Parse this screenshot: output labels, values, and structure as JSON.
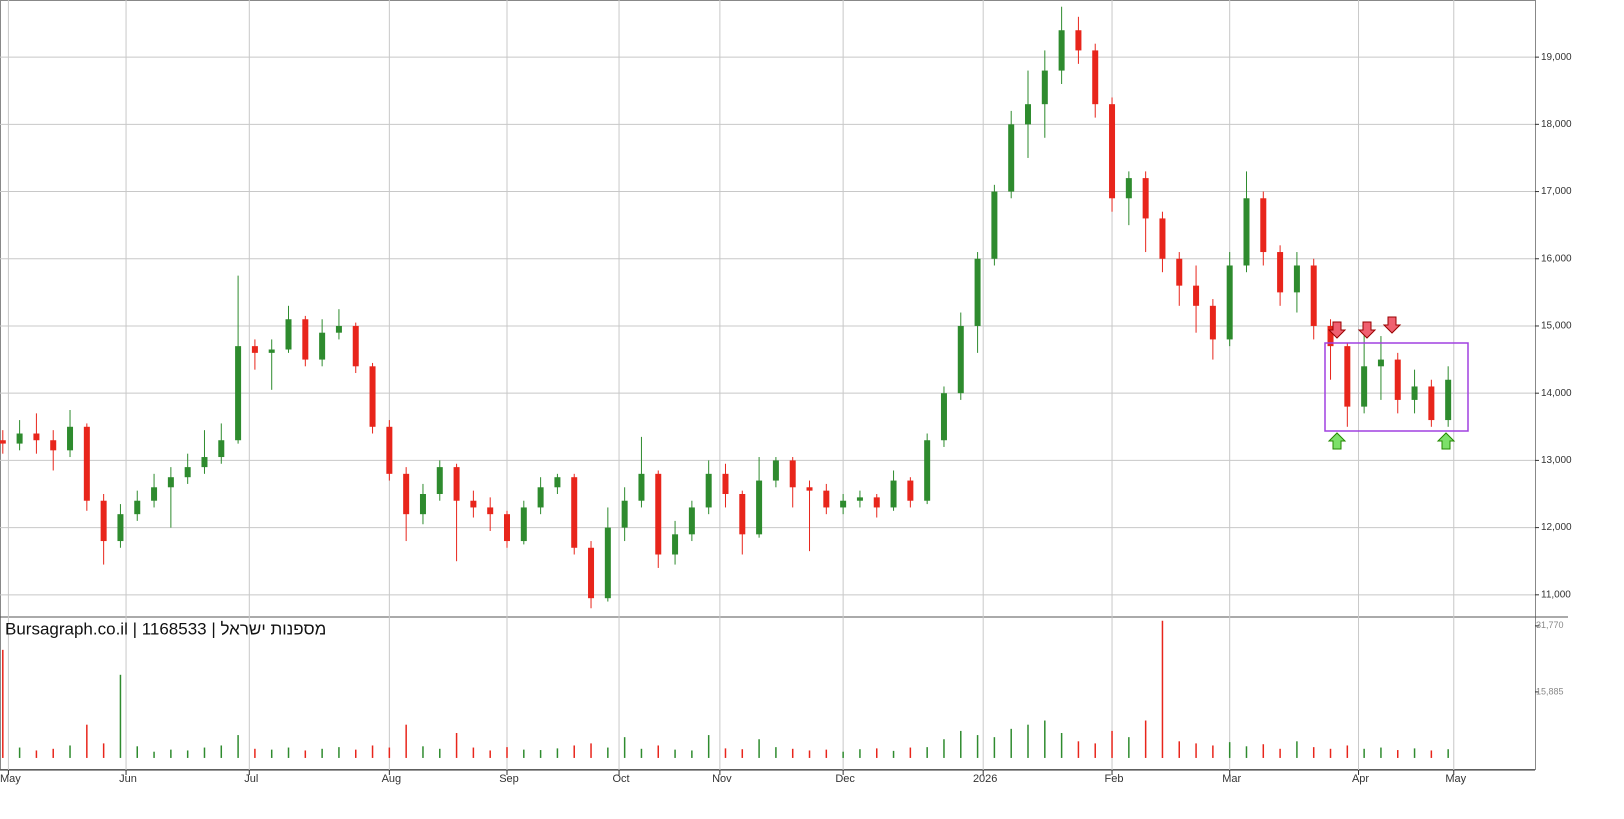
{
  "chart_data": [
    {
      "type": "candlestick",
      "watermark": "Bursagraph.co.il | 1168533 | מספנות ישראל",
      "up_color": "#2e8b2e",
      "down_color": "#e8251b",
      "grid": true,
      "xlim": [
        -0.5,
        273.5
      ],
      "ylim": [
        10670,
        19850
      ],
      "xticks": [
        {
          "value": 1,
          "label": "May"
        },
        {
          "value": 22,
          "label": "Jun"
        },
        {
          "value": 44,
          "label": "Jul"
        },
        {
          "value": 69,
          "label": "Aug"
        },
        {
          "value": 90,
          "label": "Sep"
        },
        {
          "value": 110,
          "label": "Oct"
        },
        {
          "value": 128,
          "label": "Nov"
        },
        {
          "value": 150,
          "label": "Dec"
        },
        {
          "value": 175,
          "label": "2026"
        },
        {
          "value": 198,
          "label": "Feb"
        },
        {
          "value": 219,
          "label": "Mar"
        },
        {
          "value": 242,
          "label": "Apr"
        },
        {
          "value": 259,
          "label": "May"
        }
      ],
      "yticks": [
        {
          "value": 11000,
          "label": "11,000"
        },
        {
          "value": 12000,
          "label": "12,000"
        },
        {
          "value": 13000,
          "label": "13,000"
        },
        {
          "value": 14000,
          "label": "14,000"
        },
        {
          "value": 15000,
          "label": "15,000"
        },
        {
          "value": 16000,
          "label": "16,000"
        },
        {
          "value": 17000,
          "label": "17,000"
        },
        {
          "value": 18000,
          "label": "18,000"
        },
        {
          "value": 19000,
          "label": "19,000"
        }
      ],
      "x": [
        0,
        3,
        6,
        9,
        12,
        15,
        18,
        21,
        24,
        27,
        30,
        33,
        36,
        39,
        42,
        45,
        48,
        51,
        54,
        57,
        60,
        63,
        66,
        69,
        72,
        75,
        78,
        81,
        84,
        87,
        90,
        93,
        96,
        99,
        102,
        105,
        108,
        111,
        114,
        117,
        120,
        123,
        126,
        129,
        132,
        135,
        138,
        141,
        144,
        147,
        150,
        153,
        156,
        159,
        162,
        165,
        168,
        171,
        174,
        177,
        180,
        183,
        186,
        189,
        192,
        195,
        198,
        201,
        204,
        207,
        210,
        213,
        216,
        219,
        222,
        225,
        228,
        231,
        234,
        237,
        240,
        243,
        246,
        249,
        252,
        255,
        258
      ],
      "open": [
        13300,
        13250,
        13400,
        13300,
        13150,
        13500,
        12400,
        11800,
        12200,
        12400,
        12600,
        12750,
        12900,
        13050,
        13300,
        14700,
        14600,
        14650,
        15100,
        14500,
        14900,
        15000,
        14400,
        13500,
        12800,
        12200,
        12500,
        12900,
        12400,
        12300,
        12200,
        11800,
        12300,
        12600,
        12750,
        11700,
        10950,
        12000,
        12400,
        12800,
        11600,
        11900,
        12300,
        12800,
        12500,
        11900,
        12700,
        13000,
        12600,
        12550,
        12300,
        12400,
        12450,
        12300,
        12700,
        12400,
        13300,
        14000,
        15000,
        16000,
        17000,
        18000,
        18300,
        18800,
        19400,
        19100,
        18300,
        16900,
        17200,
        16600,
        16000,
        15600,
        15300,
        14800,
        15900,
        16900,
        16100,
        15500,
        15900,
        15000,
        14700,
        13800,
        14400,
        14500,
        13900,
        14100,
        13600
      ],
      "high": [
        13450,
        13600,
        13700,
        13450,
        13750,
        13550,
        12500,
        12350,
        12550,
        12800,
        12900,
        13100,
        13450,
        13550,
        15750,
        14800,
        14800,
        15300,
        15150,
        15100,
        15250,
        15050,
        14450,
        13600,
        12900,
        12650,
        13000,
        12950,
        12550,
        12450,
        12250,
        12400,
        12750,
        12800,
        12800,
        11800,
        12300,
        12600,
        13350,
        12850,
        12100,
        12400,
        13000,
        12950,
        12550,
        13050,
        13050,
        13050,
        12700,
        12650,
        12500,
        12550,
        12500,
        12850,
        12750,
        13400,
        14100,
        15200,
        16100,
        17100,
        18200,
        18800,
        19100,
        19750,
        19600,
        19200,
        18400,
        17300,
        17300,
        16700,
        16100,
        15900,
        15400,
        16100,
        17300,
        17000,
        16200,
        16100,
        16000,
        15100,
        14750,
        15000,
        14850,
        14600,
        14350,
        14200,
        14400
      ],
      "low": [
        13100,
        13150,
        13100,
        12850,
        13050,
        12250,
        11450,
        11700,
        12100,
        12300,
        12000,
        12650,
        12800,
        12950,
        13250,
        14350,
        14050,
        14600,
        14400,
        14400,
        14800,
        14300,
        13400,
        12700,
        11800,
        12050,
        12400,
        11500,
        12150,
        11950,
        11700,
        11750,
        12200,
        12500,
        11600,
        10800,
        10900,
        11800,
        12300,
        11400,
        11450,
        11800,
        12200,
        12300,
        11600,
        11850,
        12600,
        12300,
        11650,
        12200,
        12200,
        12300,
        12150,
        12250,
        12300,
        12350,
        13200,
        13900,
        14600,
        15900,
        16900,
        17500,
        17800,
        18600,
        18900,
        18100,
        16700,
        16500,
        16100,
        15800,
        15300,
        14900,
        14500,
        14700,
        15800,
        15900,
        15300,
        15200,
        14800,
        14200,
        13500,
        13700,
        13900,
        13700,
        13700,
        13500,
        13500
      ],
      "close": [
        13250,
        13400,
        13300,
        13150,
        13500,
        12400,
        11800,
        12200,
        12400,
        12600,
        12750,
        12900,
        13050,
        13300,
        14700,
        14600,
        14650,
        15100,
        14500,
        14900,
        15000,
        14400,
        13500,
        12800,
        12200,
        12500,
        12900,
        12400,
        12300,
        12200,
        11800,
        12300,
        12600,
        12750,
        11700,
        10950,
        12000,
        12400,
        12800,
        11600,
        11900,
        12300,
        12800,
        12500,
        11900,
        12700,
        13000,
        12600,
        12550,
        12300,
        12400,
        12450,
        12300,
        12700,
        12400,
        13300,
        14000,
        15000,
        16000,
        17000,
        18000,
        18300,
        18800,
        19400,
        19100,
        18300,
        16900,
        17200,
        16600,
        16000,
        15600,
        15300,
        14800,
        15900,
        16900,
        16100,
        15500,
        15900,
        15000,
        14700,
        13800,
        14400,
        14500,
        13900,
        14100,
        13600,
        14200
      ]
    },
    {
      "type": "volume",
      "ylim": [
        -2900,
        33900
      ],
      "yticks": [
        {
          "value": 15885,
          "label": "15,885"
        },
        {
          "value": 31770,
          "label": "31,770"
        }
      ],
      "values": [
        26000,
        2500,
        1800,
        2200,
        3000,
        8000,
        3500,
        20000,
        2800,
        1500,
        2000,
        1800,
        2500,
        3000,
        5500,
        2200,
        2000,
        2500,
        1800,
        2200,
        2600,
        2000,
        3000,
        2500,
        8000,
        2800,
        2200,
        6000,
        2500,
        1800,
        2600,
        2000,
        1900,
        2300,
        3000,
        3500,
        2500,
        5000,
        2200,
        3000,
        2000,
        1800,
        5500,
        2300,
        2100,
        4500,
        2600,
        2200,
        1800,
        2000,
        1500,
        2100,
        2300,
        1700,
        2500,
        2600,
        4500,
        6500,
        5500,
        5000,
        7000,
        8000,
        9000,
        6000,
        4000,
        3500,
        6500,
        5000,
        9000,
        33000,
        4000,
        3500,
        3000,
        3800,
        2800,
        3300,
        2200,
        4000,
        2600,
        2200,
        3000,
        2200,
        2500,
        1900,
        2300,
        1800,
        2100
      ]
    }
  ]
}
